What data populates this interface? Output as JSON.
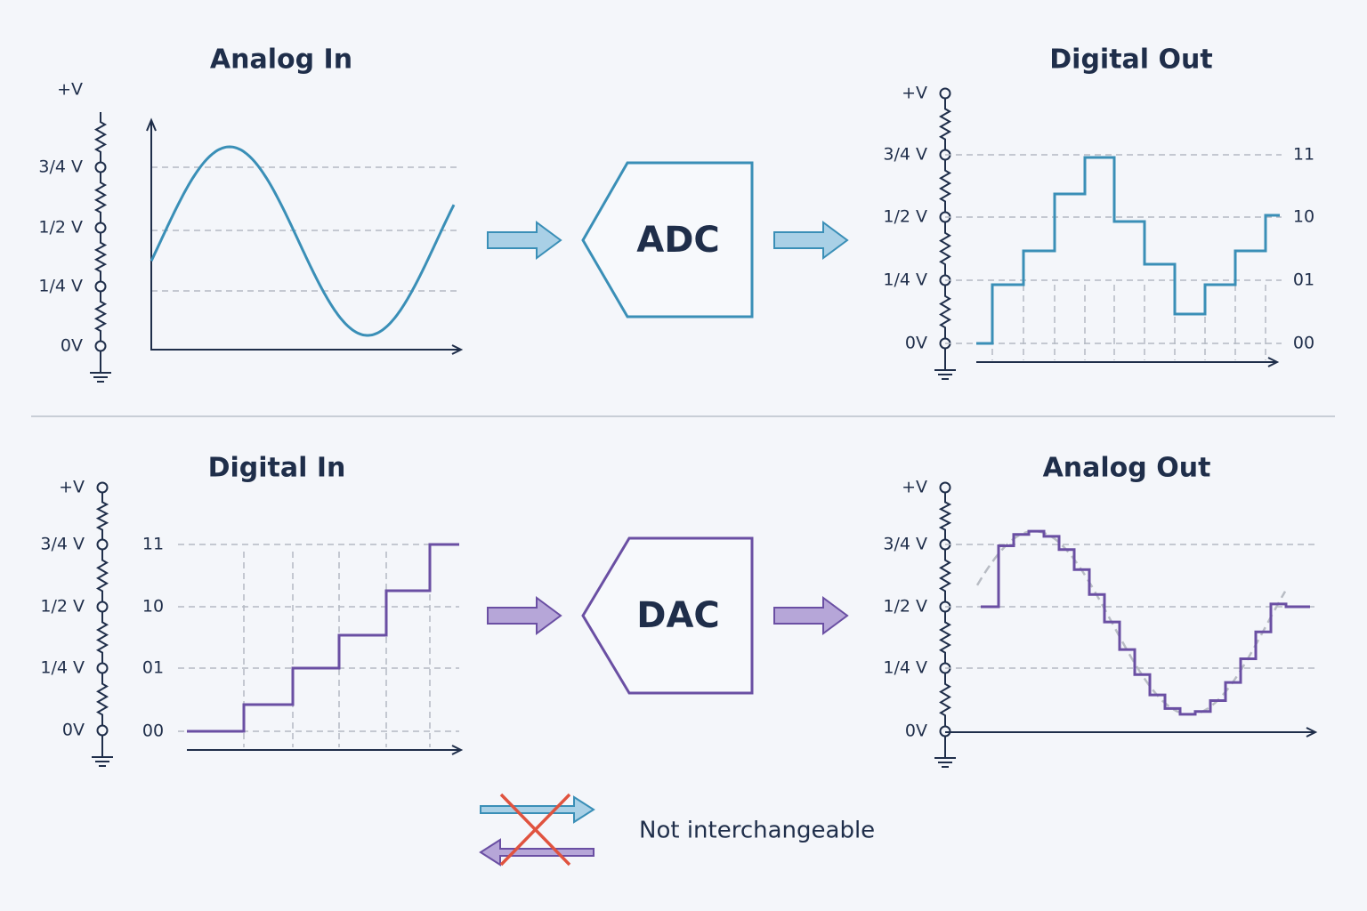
{
  "panels": [
    {
      "title": "Analog In",
      "scale": [
        "+V",
        "3/4 V",
        "1/2 V",
        "1/4 V",
        "0V"
      ]
    },
    {
      "title": "Digital Out",
      "scale": [
        "+V",
        "3/4 V",
        "1/2 V",
        "1/4 V",
        "0V"
      ],
      "codes": [
        "11",
        "10",
        "01",
        "00"
      ]
    },
    {
      "title": "Digital In",
      "scale": [
        "+V",
        "3/4 V",
        "1/2 V",
        "1/4 V",
        "0V"
      ],
      "codes": [
        "11",
        "10",
        "01",
        "00"
      ]
    },
    {
      "title": "Analog Out",
      "scale": [
        "+V",
        "3/4 V",
        "1/2 V",
        "1/4 V",
        "0V"
      ]
    }
  ],
  "converters": [
    {
      "label": "ADC"
    },
    {
      "label": "DAC"
    }
  ],
  "note": "Not interchangeable"
}
